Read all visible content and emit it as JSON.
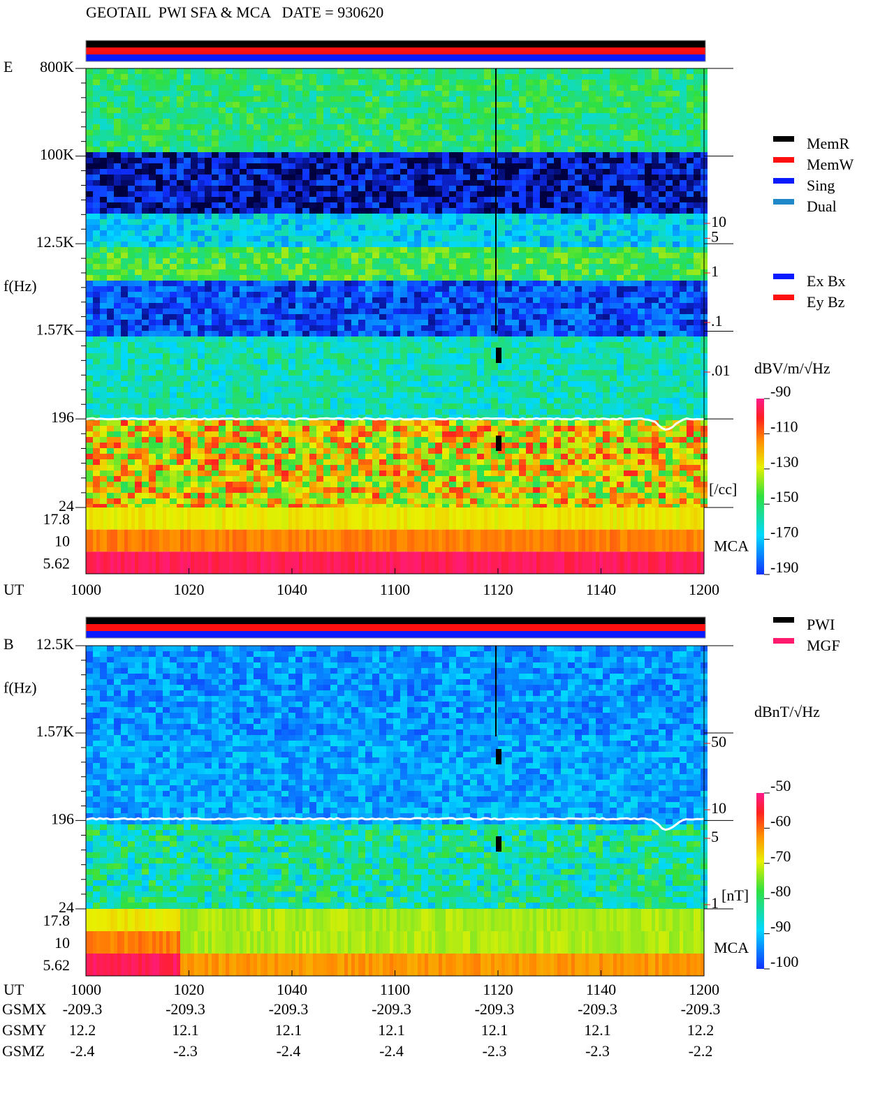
{
  "chart_data": [
    {
      "type": "spectrogram",
      "title": "GEOTAIL  PWI SFA & MCA   DATE = 930620",
      "component": "E",
      "ylabel": "f(Hz)",
      "log_scale": true,
      "ylim": [
        24,
        800000
      ],
      "yticks": [
        {
          "value": 800000,
          "label": "800K"
        },
        {
          "value": 100000,
          "label": "100K"
        },
        {
          "value": 12500,
          "label": "12.5K"
        },
        {
          "value": 1570,
          "label": "1.57K"
        },
        196,
        24
      ],
      "mca_label": "MCA",
      "mca_ticks": [
        17.8,
        10,
        5.62
      ],
      "xlabel": "UT",
      "xlim": [
        1000,
        1200
      ],
      "xticks": [
        1000,
        1020,
        1040,
        1100,
        1120,
        1140,
        1200
      ],
      "density_ticks": [
        10,
        5,
        1,
        {
          "value": 0.1,
          "label": ".1"
        },
        {
          "value": 0.01,
          "label": ".01"
        }
      ],
      "density_unit": "[/cc]",
      "colorbar": {
        "unit": "dBV/m/√Hz",
        "ylim": [
          -190,
          -90
        ],
        "ticks": [
          -90,
          -110,
          -130,
          -150,
          -170,
          -190
        ]
      },
      "legends": [
        [
          {
            "name": "MemR",
            "color": "#000000"
          },
          {
            "name": "MemW",
            "color": "#ff1010"
          },
          {
            "name": "Sing",
            "color": "#0a1aff"
          },
          {
            "name": "Dual",
            "color": "#1e88c8"
          }
        ],
        [
          {
            "name": "Ex Bx",
            "color": "#0a1aff"
          },
          {
            "name": "Ey Bz",
            "color": "#ff1010"
          }
        ]
      ]
    },
    {
      "type": "spectrogram",
      "component": "B",
      "ylabel": "f(Hz)",
      "log_scale": true,
      "ylim": [
        24,
        12500
      ],
      "yticks": [
        {
          "value": 12500,
          "label": "12.5K"
        },
        {
          "value": 1570,
          "label": "1.57K"
        },
        196,
        24
      ],
      "mca_label": "MCA",
      "mca_ticks": [
        17.8,
        10,
        5.62
      ],
      "xlabel": "UT",
      "xlim": [
        1000,
        1200
      ],
      "xticks": [
        1000,
        1020,
        1040,
        1100,
        1120,
        1140,
        1200
      ],
      "density_ticks": [
        50,
        10,
        5,
        1
      ],
      "density_unit": "[nT]",
      "colorbar": {
        "unit": "dBnT/√Hz",
        "ylim": [
          -100,
          -50
        ],
        "ticks": [
          -50,
          -60,
          -70,
          -80,
          -90,
          -100
        ]
      },
      "legends": [
        [
          {
            "name": "PWI",
            "color": "#000000"
          },
          {
            "name": "MGF",
            "color": "#ff1a6e"
          }
        ]
      ],
      "orbit": [
        {
          "label": "GSMX",
          "values": [
            -209.3,
            -209.3,
            -209.3,
            -209.3,
            -209.3,
            -209.3,
            -209.3
          ]
        },
        {
          "label": "GSMY",
          "values": [
            12.2,
            12.1,
            12.1,
            12.1,
            12.1,
            12.1,
            12.2
          ]
        },
        {
          "label": "GSMZ",
          "values": [
            -2.4,
            -2.3,
            -2.4,
            -2.4,
            -2.3,
            -2.3,
            -2.2
          ]
        }
      ]
    }
  ]
}
